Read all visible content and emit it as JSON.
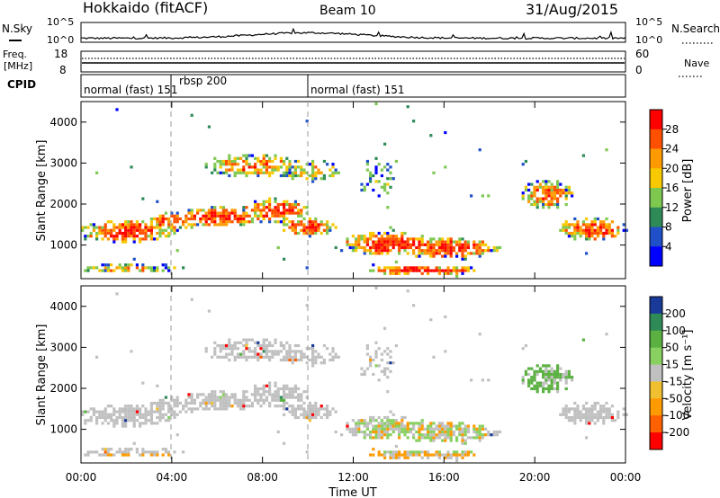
{
  "header": {
    "station": "Hokkaido (fitACF)",
    "beam": "Beam 10",
    "date": "31/Aug/2015"
  },
  "noise_panel": {
    "left_label": "N.Sky",
    "right_label": "N.Search",
    "y_ticks": [
      "10^5",
      "10^0"
    ],
    "y_ticks_right": [
      "10^5",
      "10^0"
    ]
  },
  "freq_panel": {
    "left_label_1": "Freq.",
    "left_label_2": "[MHz]",
    "left_ticks": [
      "18",
      "8"
    ],
    "right_ticks": [
      "60",
      "0"
    ],
    "right_label": "Nave"
  },
  "cpid_panel": {
    "label": "CPID",
    "segments": [
      {
        "name": "normal (fast) 151",
        "start_hour": 0.0
      },
      {
        "name": "rbsp 200",
        "start_hour": 4.0
      },
      {
        "name": "normal (fast) 151",
        "start_hour": 10.0
      }
    ]
  },
  "chart_data": [
    {
      "type": "heatmap",
      "title": "Power",
      "ylabel": "Slant Range [km]",
      "xlabel": "",
      "ylim": [
        180,
        4500
      ],
      "y_ticks": [
        "4000",
        "3000",
        "2000",
        "1000"
      ],
      "colorbar": {
        "label": "Power [dB]",
        "ticks": [
          "28",
          "24",
          "20",
          "16",
          "12",
          "8",
          "4"
        ],
        "colors": [
          "#ff0000",
          "#ff5000",
          "#ff9a00",
          "#f8c800",
          "#7ec850",
          "#2e8b57",
          "#2050c8",
          "#0000ff"
        ]
      }
    },
    {
      "type": "heatmap",
      "title": "Velocity",
      "ylabel": "Slant Range [km]",
      "xlabel": "Time UT",
      "ylim": [
        180,
        4500
      ],
      "y_ticks": [
        "4000",
        "3000",
        "2000",
        "1000"
      ],
      "x_ticks": [
        "00:00",
        "04:00",
        "08:00",
        "12:00",
        "16:00",
        "20:00",
        "00:00"
      ],
      "colorbar": {
        "label": "Velocity [m s⁻¹]",
        "ticks": [
          "200",
          "100",
          "50",
          "15",
          "-15",
          "-50",
          "-100",
          "-200"
        ],
        "colors": [
          "#1a3a9a",
          "#2e8b57",
          "#5ab040",
          "#88d060",
          "#c0c0c0",
          "#f0c030",
          "#ff9a00",
          "#ff6000",
          "#ff0000"
        ]
      }
    }
  ],
  "colors": {
    "ground_scatter": "#c0c0c0",
    "frame": "#000000"
  }
}
